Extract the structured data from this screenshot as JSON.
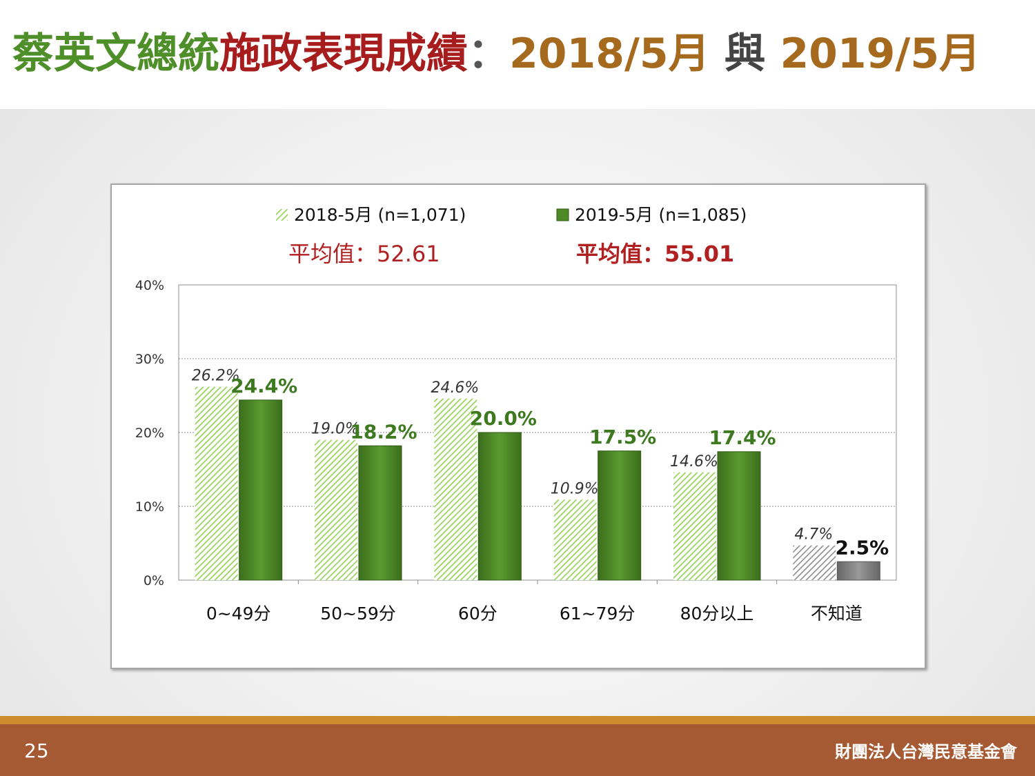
{
  "title": {
    "part1": "蔡英文總統",
    "part2": "施政表現成績",
    "colon": "：",
    "part3": "2018/5月",
    "part4": "與",
    "part5": "2019/5月"
  },
  "footer": {
    "page_number": "25",
    "org_name": "財團法人台灣民意基金會"
  },
  "colors": {
    "title_green": "#4f8f2a",
    "title_red": "#a71d1d",
    "title_brown": "#a56a1e",
    "series_2018": "#92d050",
    "series_2019": "#4e8a26",
    "unknown_gray": "#888888",
    "footer_bg": "#a65a33",
    "footer_stripe": "#cd8d2f"
  },
  "chart_data": {
    "type": "bar",
    "categories": [
      "0~49分",
      "50~59分",
      "60分",
      "61~79分",
      "80分以上",
      "不知道"
    ],
    "series": [
      {
        "name": "2018-5月 (n=1,071)",
        "values": [
          26.2,
          19.0,
          24.6,
          10.9,
          14.6,
          4.7
        ],
        "labels": [
          "26.2%",
          "19.0%",
          "24.6%",
          "10.9%",
          "14.6%",
          "4.7%"
        ],
        "average": "平均值：52.61"
      },
      {
        "name": "2019-5月 (n=1,085)",
        "values": [
          24.4,
          18.2,
          20.0,
          17.5,
          17.4,
          2.5
        ],
        "labels": [
          "24.4%",
          "18.2%",
          "20.0%",
          "17.5%",
          "17.4%",
          "2.5%"
        ],
        "average": "平均值：55.01"
      }
    ],
    "yticks": [
      "0%",
      "10%",
      "20%",
      "30%",
      "40%"
    ],
    "ylim": [
      0,
      40
    ],
    "grid": "dashed horizontal",
    "legend": "top-center",
    "xlabel": "",
    "ylabel": ""
  }
}
